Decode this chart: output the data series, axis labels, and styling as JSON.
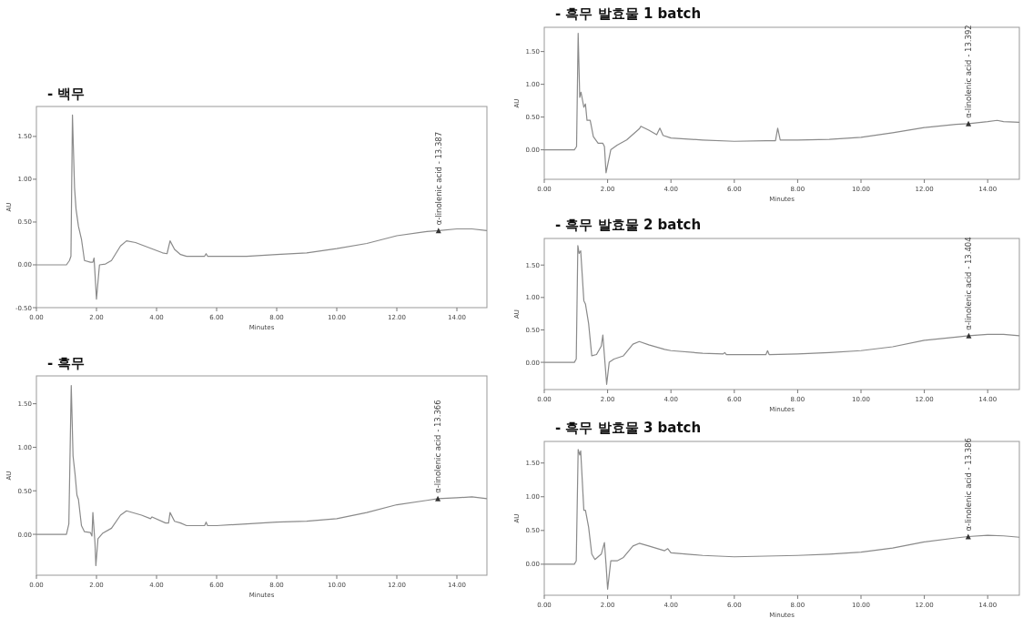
{
  "chart_data": [
    {
      "type": "line",
      "title": "- 백무",
      "xlabel": "Minutes",
      "ylabel": "AU",
      "xlim": [
        0,
        15
      ],
      "ylim": [
        -0.5,
        1.85
      ],
      "xticks": [
        {
          "value": 0,
          "label": "0.00"
        },
        {
          "value": 2,
          "label": "2.00"
        },
        {
          "value": 4,
          "label": "4.00"
        },
        {
          "value": 6,
          "label": "6.00"
        },
        {
          "value": 8,
          "label": "8.00"
        },
        {
          "value": 10,
          "label": "10.00"
        },
        {
          "value": 12,
          "label": "12.00"
        },
        {
          "value": 14,
          "label": "14.00"
        }
      ],
      "yticks": [
        {
          "value": -0.5,
          "label": "-0.50"
        },
        {
          "value": 0,
          "label": "0.00"
        },
        {
          "value": 0.5,
          "label": "0.50"
        },
        {
          "value": 1,
          "label": "1.00"
        },
        {
          "value": 1.5,
          "label": "1.50"
        }
      ],
      "series": [
        {
          "color": "#8a8a8a",
          "x": [
            0,
            1.0,
            1.1,
            1.15,
            1.2,
            1.27,
            1.32,
            1.4,
            1.5,
            1.6,
            1.8,
            1.88,
            1.92,
            1.95,
            2.0,
            2.05,
            2.1,
            2.3,
            2.5,
            2.8,
            3.0,
            3.3,
            3.6,
            3.9,
            4.2,
            4.35,
            4.45,
            4.6,
            4.8,
            5.0,
            5.6,
            5.65,
            5.7,
            6,
            7,
            8,
            9,
            10,
            11,
            12,
            13,
            13.4,
            14,
            14.5,
            15
          ],
          "values": [
            0,
            0,
            0.05,
            0.1,
            1.75,
            0.9,
            0.65,
            0.45,
            0.3,
            0.05,
            0.03,
            0.03,
            0.08,
            -0.1,
            -0.4,
            -0.2,
            0.0,
            0.01,
            0.05,
            0.22,
            0.28,
            0.26,
            0.22,
            0.18,
            0.14,
            0.13,
            0.28,
            0.18,
            0.12,
            0.1,
            0.1,
            0.13,
            0.1,
            0.1,
            0.1,
            0.12,
            0.14,
            0.19,
            0.25,
            0.34,
            0.39,
            0.4,
            0.42,
            0.42,
            0.4
          ]
        }
      ],
      "annotations": [
        {
          "text": "α-linolenic acid - 13.387",
          "x": 13.387,
          "y": 0.4
        }
      ]
    },
    {
      "type": "line",
      "title": "- 흑무",
      "xlabel": "Minutes",
      "ylabel": "AU",
      "xlim": [
        0,
        15
      ],
      "ylim": [
        -0.47,
        1.82
      ],
      "xticks": [
        {
          "value": 0,
          "label": "0.00"
        },
        {
          "value": 2,
          "label": "2.00"
        },
        {
          "value": 4,
          "label": "4.00"
        },
        {
          "value": 6,
          "label": "6.00"
        },
        {
          "value": 8,
          "label": "8.00"
        },
        {
          "value": 10,
          "label": "10.00"
        },
        {
          "value": 12,
          "label": "12.00"
        },
        {
          "value": 14,
          "label": "14.00"
        }
      ],
      "yticks": [
        {
          "value": 0,
          "label": "0.00"
        },
        {
          "value": 0.5,
          "label": "0.50"
        },
        {
          "value": 1,
          "label": "1.00"
        },
        {
          "value": 1.5,
          "label": "1.50"
        }
      ],
      "series": [
        {
          "color": "#8a8a8a",
          "x": [
            0,
            1.0,
            1.08,
            1.16,
            1.22,
            1.29,
            1.35,
            1.4,
            1.5,
            1.6,
            1.8,
            1.85,
            1.88,
            1.95,
            1.98,
            2.05,
            2.2,
            2.5,
            2.8,
            3.0,
            3.5,
            3.8,
            3.85,
            4.3,
            4.4,
            4.45,
            4.6,
            4.8,
            5.0,
            5.6,
            5.65,
            5.7,
            6,
            7,
            8,
            9,
            10,
            11,
            12,
            13,
            13.37,
            14,
            14.5,
            15
          ],
          "values": [
            0,
            0,
            0.12,
            1.71,
            0.9,
            0.68,
            0.45,
            0.4,
            0.1,
            0.03,
            0.02,
            -0.02,
            0.25,
            -0.1,
            -0.36,
            -0.05,
            0.01,
            0.07,
            0.22,
            0.27,
            0.22,
            0.18,
            0.2,
            0.13,
            0.13,
            0.25,
            0.15,
            0.13,
            0.1,
            0.1,
            0.14,
            0.1,
            0.1,
            0.12,
            0.14,
            0.15,
            0.18,
            0.25,
            0.34,
            0.39,
            0.41,
            0.42,
            0.43,
            0.41
          ]
        }
      ],
      "annotations": [
        {
          "text": "α-linolenic acid - 13.366",
          "x": 13.366,
          "y": 0.41
        }
      ]
    },
    {
      "type": "line",
      "title": "- 흑무 발효물 1 batch",
      "xlabel": "Minutes",
      "ylabel": "AU",
      "xlim": [
        0,
        15
      ],
      "ylim": [
        -0.45,
        1.87
      ],
      "xticks": [
        {
          "value": 0,
          "label": "0.00"
        },
        {
          "value": 2,
          "label": "2.00"
        },
        {
          "value": 4,
          "label": "4.00"
        },
        {
          "value": 6,
          "label": "6.00"
        },
        {
          "value": 8,
          "label": "8.00"
        },
        {
          "value": 10,
          "label": "10.00"
        },
        {
          "value": 12,
          "label": "12.00"
        },
        {
          "value": 14,
          "label": "14.00"
        }
      ],
      "yticks": [
        {
          "value": 0,
          "label": "0.00"
        },
        {
          "value": 0.5,
          "label": "0.50"
        },
        {
          "value": 1,
          "label": "1.00"
        },
        {
          "value": 1.5,
          "label": "1.50"
        }
      ],
      "series": [
        {
          "color": "#8a8a8a",
          "x": [
            0,
            0.95,
            1.02,
            1.07,
            1.12,
            1.16,
            1.25,
            1.3,
            1.35,
            1.45,
            1.55,
            1.7,
            1.85,
            1.9,
            1.95,
            2.1,
            2.3,
            2.6,
            3.0,
            3.05,
            3.3,
            3.55,
            3.65,
            3.75,
            4.0,
            5,
            6,
            7,
            7.3,
            7.37,
            7.45,
            8,
            9,
            10,
            11,
            12,
            13,
            13.4,
            14,
            14.3,
            14.5,
            15
          ],
          "values": [
            0,
            0,
            0.05,
            1.78,
            0.8,
            0.88,
            0.65,
            0.7,
            0.45,
            0.45,
            0.2,
            0.1,
            0.1,
            0.05,
            -0.35,
            0.0,
            0.07,
            0.15,
            0.32,
            0.36,
            0.3,
            0.23,
            0.33,
            0.22,
            0.18,
            0.15,
            0.13,
            0.14,
            0.14,
            0.33,
            0.15,
            0.15,
            0.16,
            0.19,
            0.26,
            0.34,
            0.39,
            0.4,
            0.43,
            0.45,
            0.43,
            0.42
          ]
        }
      ],
      "annotations": [
        {
          "text": "α-linolenic acid - 13.392",
          "x": 13.392,
          "y": 0.4
        }
      ]
    },
    {
      "type": "line",
      "title": "- 흑무 발효물 2 batch",
      "xlabel": "Minutes",
      "ylabel": "AU",
      "xlim": [
        0,
        15
      ],
      "ylim": [
        -0.42,
        1.91
      ],
      "xticks": [
        {
          "value": 0,
          "label": "0.00"
        },
        {
          "value": 2,
          "label": "2.00"
        },
        {
          "value": 4,
          "label": "4.00"
        },
        {
          "value": 6,
          "label": "6.00"
        },
        {
          "value": 8,
          "label": "8.00"
        },
        {
          "value": 10,
          "label": "10.00"
        },
        {
          "value": 12,
          "label": "12.00"
        },
        {
          "value": 14,
          "label": "14.00"
        }
      ],
      "yticks": [
        {
          "value": 0,
          "label": "0.00"
        },
        {
          "value": 0.5,
          "label": "0.50"
        },
        {
          "value": 1,
          "label": "1.00"
        },
        {
          "value": 1.5,
          "label": "1.50"
        }
      ],
      "series": [
        {
          "color": "#8a8a8a",
          "x": [
            0,
            0.95,
            1.01,
            1.06,
            1.1,
            1.15,
            1.25,
            1.3,
            1.4,
            1.5,
            1.65,
            1.8,
            1.85,
            1.9,
            1.97,
            2.05,
            2.2,
            2.5,
            2.8,
            3.0,
            3.3,
            3.8,
            4,
            5,
            5.65,
            5.7,
            5.75,
            6,
            7,
            7.05,
            7.1,
            8,
            9,
            10,
            11,
            12,
            13,
            13.4,
            14,
            14.5,
            15
          ],
          "values": [
            0,
            0,
            0.05,
            1.8,
            1.68,
            1.72,
            0.95,
            0.9,
            0.6,
            0.1,
            0.12,
            0.25,
            0.42,
            0.1,
            -0.34,
            0.0,
            0.05,
            0.1,
            0.28,
            0.32,
            0.27,
            0.2,
            0.18,
            0.14,
            0.13,
            0.15,
            0.12,
            0.12,
            0.12,
            0.18,
            0.12,
            0.13,
            0.15,
            0.18,
            0.24,
            0.34,
            0.39,
            0.41,
            0.43,
            0.43,
            0.41
          ]
        }
      ],
      "annotations": [
        {
          "text": "α-linolenic acid - 13.404",
          "x": 13.404,
          "y": 0.41
        }
      ]
    },
    {
      "type": "line",
      "title": "- 흑무 발효물 3 batch",
      "xlabel": "Minutes",
      "ylabel": "AU",
      "xlim": [
        0,
        15
      ],
      "ylim": [
        -0.46,
        1.82
      ],
      "xticks": [
        {
          "value": 0,
          "label": "0.00"
        },
        {
          "value": 2,
          "label": "2.00"
        },
        {
          "value": 4,
          "label": "4.00"
        },
        {
          "value": 6,
          "label": "6.00"
        },
        {
          "value": 8,
          "label": "8.00"
        },
        {
          "value": 10,
          "label": "10.00"
        },
        {
          "value": 12,
          "label": "12.00"
        },
        {
          "value": 14,
          "label": "14.00"
        }
      ],
      "yticks": [
        {
          "value": 0,
          "label": "0.00"
        },
        {
          "value": 0.5,
          "label": "0.50"
        },
        {
          "value": 1,
          "label": "1.00"
        },
        {
          "value": 1.5,
          "label": "1.50"
        }
      ],
      "series": [
        {
          "color": "#8a8a8a",
          "x": [
            0,
            0.95,
            1.01,
            1.07,
            1.12,
            1.15,
            1.25,
            1.3,
            1.4,
            1.5,
            1.6,
            1.8,
            1.9,
            1.95,
            2.0,
            2.1,
            2.3,
            2.5,
            2.8,
            3.0,
            3.3,
            3.8,
            3.9,
            4.0,
            5,
            6,
            7,
            8,
            9,
            10,
            11,
            12,
            13,
            13.39,
            14,
            14.5,
            15
          ],
          "values": [
            0,
            0,
            0.05,
            1.7,
            1.62,
            1.68,
            0.8,
            0.8,
            0.55,
            0.15,
            0.07,
            0.15,
            0.32,
            0.0,
            -0.37,
            0.05,
            0.05,
            0.1,
            0.27,
            0.31,
            0.27,
            0.2,
            0.23,
            0.17,
            0.13,
            0.11,
            0.12,
            0.13,
            0.15,
            0.18,
            0.24,
            0.33,
            0.39,
            0.41,
            0.43,
            0.42,
            0.4
          ]
        }
      ],
      "annotations": [
        {
          "text": "α-linolenic acid - 13.386",
          "x": 13.386,
          "y": 0.41
        }
      ]
    }
  ]
}
